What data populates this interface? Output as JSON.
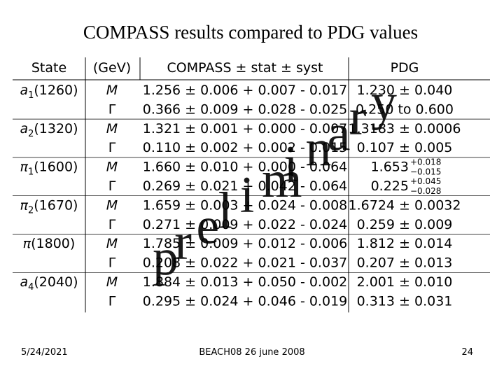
{
  "header": {
    "title": "COMPASS results compared to PDG values"
  },
  "table": {
    "columns": [
      "State",
      "(GeV)",
      "COMPASS ± stat ± syst",
      "PDG"
    ],
    "rows": [
      {
        "state": {
          "symbol": "a",
          "sub": "1",
          "mass": "(1260)"
        },
        "param": "M",
        "compass": "1.256 ± 0.006 + 0.007 - 0.017",
        "pdg": {
          "value": "1.230 ± 0.040"
        }
      },
      {
        "param": "Γ",
        "compass": "0.366 ± 0.009 + 0.028 - 0.025",
        "pdg": {
          "value": "0.250 to 0.600"
        }
      },
      {
        "state": {
          "symbol": "a",
          "sub": "2",
          "mass": "(1320)"
        },
        "param": "M",
        "compass": "1.321 ± 0.001 + 0.000 - 0.007",
        "pdg": {
          "value": "1.3183 ± 0.0006"
        }
      },
      {
        "param": "Γ",
        "compass": "0.110 ± 0.002 + 0.002 - 0.015",
        "pdg": {
          "value": "0.107 ± 0.005"
        }
      },
      {
        "state": {
          "symbol": "π",
          "sub": "1",
          "mass": "(1600)"
        },
        "param": "M",
        "compass": "1.660 ± 0.010 + 0.000 - 0.064",
        "pdg": {
          "value": "1.653",
          "plus": "+0.018",
          "minus": "−0.015"
        }
      },
      {
        "param": "Γ",
        "compass": "0.269 ± 0.021 + 0.042 - 0.064",
        "pdg": {
          "value": "0.225",
          "plus": "+0.045",
          "minus": "−0.028"
        }
      },
      {
        "state": {
          "symbol": "π",
          "sub": "2",
          "mass": "(1670)"
        },
        "param": "M",
        "compass": "1.659 ± 0.003 + 0.024 - 0.008",
        "pdg": {
          "value": "1.6724 ± 0.0032"
        }
      },
      {
        "param": "Γ",
        "compass": "0.271 ± 0.009 + 0.022 - 0.024",
        "pdg": {
          "value": "0.259 ± 0.009"
        }
      },
      {
        "state": {
          "symbol": "π",
          "mass": "(1800)"
        },
        "param": "M",
        "compass": "1.785 ± 0.009 + 0.012 - 0.006",
        "pdg": {
          "value": "1.812 ± 0.014"
        }
      },
      {
        "param": "Γ",
        "compass": "0.208 ± 0.022 + 0.021 - 0.037",
        "pdg": {
          "value": "0.207 ± 0.013"
        }
      },
      {
        "state": {
          "symbol": "a",
          "sub": "4",
          "mass": "(2040)"
        },
        "param": "M",
        "compass": "1.884 ± 0.013 + 0.050 - 0.002",
        "pdg": {
          "value": "2.001 ± 0.010"
        }
      },
      {
        "param": "Γ",
        "compass": "0.295 ± 0.024 + 0.046 - 0.019",
        "pdg": {
          "value": "0.313 ± 0.031"
        }
      }
    ]
  },
  "watermark": "preliminary",
  "footer": {
    "date": "5/24/2021",
    "center": "BEACH08 26 june 2008",
    "page": "24"
  }
}
